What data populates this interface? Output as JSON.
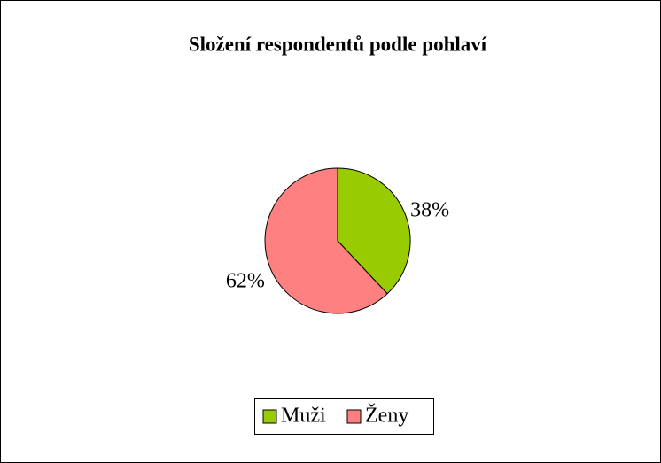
{
  "chart_data": {
    "type": "pie",
    "title": "Složení respondentů podle pohlaví",
    "categories": [
      "Muži",
      "Ženy"
    ],
    "values": [
      38,
      62
    ],
    "value_labels": [
      "38%",
      "62%"
    ],
    "colors": [
      "#99cc00",
      "#ff8080"
    ],
    "legend": "bottom"
  }
}
